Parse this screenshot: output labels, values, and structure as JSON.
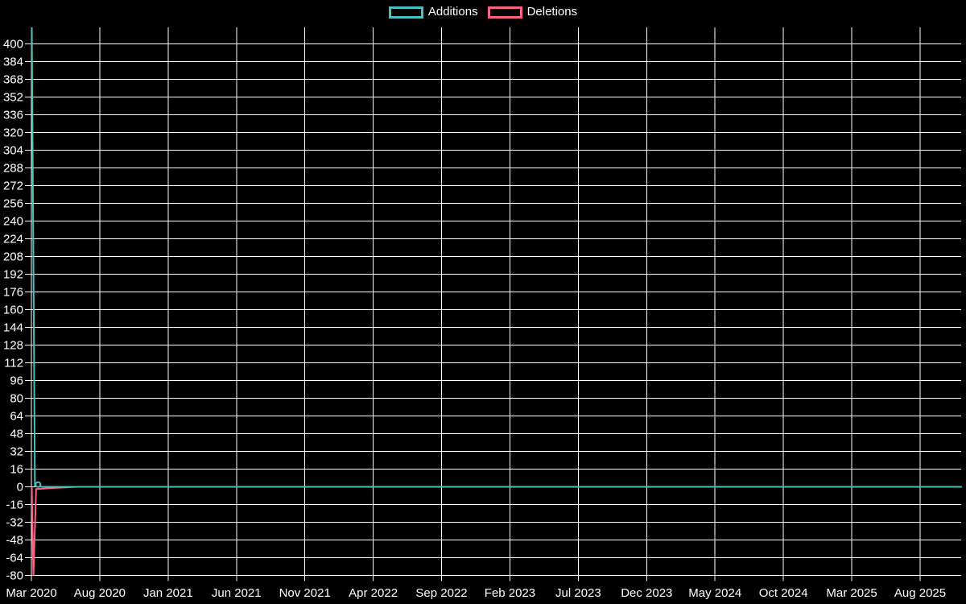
{
  "chart_data": {
    "type": "line",
    "title": "",
    "background_color": "#000000",
    "grid": true,
    "grid_color": "#ffffff",
    "text_color": "#ffffff",
    "legend_position": "top-center",
    "legend": [
      {
        "label": "Additions",
        "color": "#4bc0c0"
      },
      {
        "label": "Deletions",
        "color": "#ff6384"
      }
    ],
    "x_tick_labels": [
      "Mar 2020",
      "Aug 2020",
      "Jan 2021",
      "Jun 2021",
      "Nov 2021",
      "Apr 2022",
      "Sep 2022",
      "Feb 2023",
      "Jul 2023",
      "Dec 2023",
      "May 2024",
      "Oct 2024",
      "Mar 2025",
      "Aug 2025"
    ],
    "y_tick_labels": [
      "400",
      "384",
      "368",
      "352",
      "336",
      "320",
      "304",
      "288",
      "272",
      "256",
      "240",
      "224",
      "208",
      "192",
      "176",
      "160",
      "144",
      "128",
      "112",
      "96",
      "80",
      "64",
      "48",
      "32",
      "16",
      "0",
      "-16",
      "-32",
      "-48",
      "-64",
      "-80"
    ],
    "y_axis": {
      "min": -80,
      "max_labeled": 400,
      "tick_step": 16,
      "top_clip_value": 414
    },
    "series": [
      {
        "name": "Additions",
        "color": "#4bc0c0",
        "note": "First weekly point spikes above the visible axis top (clipped, ~416); second point ~2 with a circular marker; 0 for all later weeks.",
        "points": [
          [
            0.0009,
            416
          ],
          [
            0.0042,
            0.5
          ],
          [
            0.0076,
            2
          ],
          [
            0.011,
            0
          ],
          [
            1,
            0
          ]
        ],
        "marker_point": [
          0.0076,
          2
        ]
      },
      {
        "name": "Deletions",
        "color": "#ff6384",
        "note": "Spikes down to the axis minimum (-80) in the first week, then returns to ~0 for all later weeks.",
        "points": [
          [
            0.0009,
            0
          ],
          [
            0.0026,
            -80
          ],
          [
            0.0055,
            -2
          ],
          [
            0.025,
            -1
          ],
          [
            0.05,
            0
          ],
          [
            1,
            0
          ]
        ]
      }
    ]
  }
}
